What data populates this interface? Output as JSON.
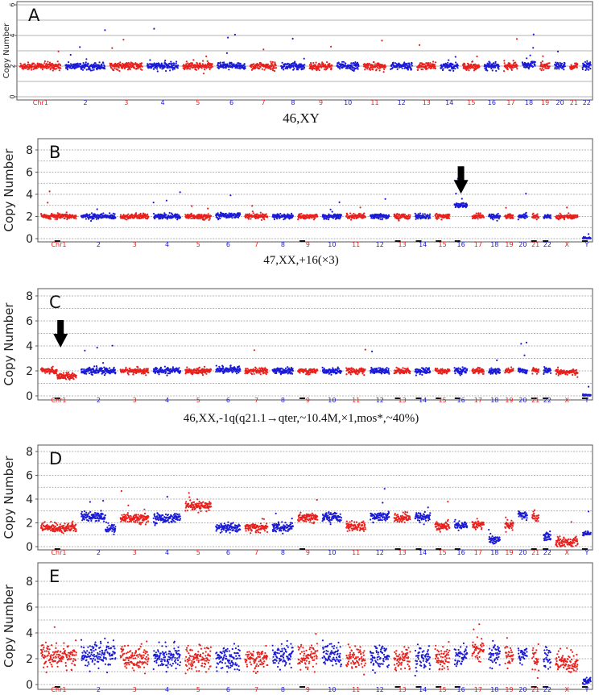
{
  "panels": [
    {
      "letter": "A",
      "caption": "46,XY",
      "ylabel": "Copy Number",
      "ylim": [
        0,
        6
      ],
      "yticks": [
        0,
        2,
        4,
        6
      ],
      "has_xy": false,
      "arrow": null,
      "segments": [
        {
          "chr": "1",
          "mean": 2.0,
          "color": "#e8201c"
        },
        {
          "chr": "2",
          "mean": 2.0,
          "color": "#1a1ad6"
        },
        {
          "chr": "3",
          "mean": 2.0,
          "color": "#e8201c"
        },
        {
          "chr": "4",
          "mean": 2.0,
          "color": "#1a1ad6"
        },
        {
          "chr": "5",
          "mean": 2.0,
          "color": "#e8201c"
        },
        {
          "chr": "6",
          "mean": 2.0,
          "color": "#1a1ad6"
        },
        {
          "chr": "7",
          "mean": 2.0,
          "color": "#e8201c"
        },
        {
          "chr": "8",
          "mean": 2.0,
          "color": "#1a1ad6"
        },
        {
          "chr": "9",
          "mean": 2.0,
          "color": "#e8201c"
        },
        {
          "chr": "10",
          "mean": 2.0,
          "color": "#1a1ad6"
        },
        {
          "chr": "11",
          "mean": 2.0,
          "color": "#e8201c"
        },
        {
          "chr": "12",
          "mean": 2.0,
          "color": "#1a1ad6"
        },
        {
          "chr": "13",
          "mean": 2.0,
          "color": "#e8201c"
        },
        {
          "chr": "14",
          "mean": 2.0,
          "color": "#1a1ad6"
        },
        {
          "chr": "15",
          "mean": 2.0,
          "color": "#e8201c"
        },
        {
          "chr": "16",
          "mean": 2.0,
          "color": "#1a1ad6"
        },
        {
          "chr": "17",
          "mean": 2.0,
          "color": "#e8201c"
        },
        {
          "chr": "18",
          "mean": 2.1,
          "color": "#1a1ad6"
        },
        {
          "chr": "19",
          "mean": 2.0,
          "color": "#e8201c"
        },
        {
          "chr": "20",
          "mean": 2.0,
          "color": "#1a1ad6"
        },
        {
          "chr": "21",
          "mean": 2.0,
          "color": "#e8201c"
        },
        {
          "chr": "22",
          "mean": 2.0,
          "color": "#1a1ad6"
        }
      ]
    },
    {
      "letter": "B",
      "caption": "47,XX,+16(×3)",
      "ylabel": "Copy Number",
      "ylim": [
        0,
        8
      ],
      "yticks": [
        0,
        2,
        4,
        6,
        8
      ],
      "has_xy": true,
      "arrow": {
        "chr": "16",
        "value": 4.2
      },
      "segments": [
        {
          "chr": "1",
          "mean": 2.0,
          "color": "#e8201c"
        },
        {
          "chr": "2",
          "mean": 2.0,
          "color": "#1a1ad6"
        },
        {
          "chr": "3",
          "mean": 2.0,
          "color": "#e8201c"
        },
        {
          "chr": "4",
          "mean": 2.0,
          "color": "#1a1ad6"
        },
        {
          "chr": "5",
          "mean": 2.0,
          "color": "#e8201c"
        },
        {
          "chr": "6",
          "mean": 2.1,
          "color": "#1a1ad6"
        },
        {
          "chr": "7",
          "mean": 2.0,
          "color": "#e8201c"
        },
        {
          "chr": "8",
          "mean": 2.0,
          "color": "#1a1ad6"
        },
        {
          "chr": "9",
          "mean": 2.0,
          "color": "#e8201c"
        },
        {
          "chr": "10",
          "mean": 2.0,
          "color": "#1a1ad6"
        },
        {
          "chr": "11",
          "mean": 2.0,
          "color": "#e8201c"
        },
        {
          "chr": "12",
          "mean": 2.0,
          "color": "#1a1ad6"
        },
        {
          "chr": "13",
          "mean": 2.0,
          "color": "#e8201c"
        },
        {
          "chr": "14",
          "mean": 2.0,
          "color": "#1a1ad6"
        },
        {
          "chr": "15",
          "mean": 2.0,
          "color": "#e8201c"
        },
        {
          "chr": "16",
          "mean": 3.0,
          "color": "#1a1ad6"
        },
        {
          "chr": "17",
          "mean": 2.0,
          "color": "#e8201c"
        },
        {
          "chr": "18",
          "mean": 2.0,
          "color": "#1a1ad6"
        },
        {
          "chr": "19",
          "mean": 2.0,
          "color": "#e8201c"
        },
        {
          "chr": "20",
          "mean": 2.0,
          "color": "#1a1ad6"
        },
        {
          "chr": "21",
          "mean": 2.0,
          "color": "#e8201c"
        },
        {
          "chr": "22",
          "mean": 2.0,
          "color": "#1a1ad6"
        },
        {
          "chr": "X",
          "mean": 2.0,
          "color": "#e8201c"
        },
        {
          "chr": "Y",
          "mean": 0.05,
          "color": "#1a1ad6"
        }
      ]
    },
    {
      "letter": "C",
      "caption": "46,XX,-1q(q21.1→qter,~10.4M,×1,mos*,~40%)",
      "ylabel": "Copy Number",
      "ylim": [
        0,
        8
      ],
      "yticks": [
        0,
        2,
        4,
        6,
        8
      ],
      "has_xy": true,
      "arrow": {
        "chr": "1",
        "value": 4.0,
        "offset": 0.55
      },
      "segments": [
        {
          "chr": "1",
          "mean": 2.0,
          "color": "#e8201c",
          "partial": {
            "from": 0.45,
            "to": 1.0,
            "mean": 1.6
          }
        },
        {
          "chr": "2",
          "mean": 2.0,
          "color": "#1a1ad6"
        },
        {
          "chr": "3",
          "mean": 2.0,
          "color": "#e8201c"
        },
        {
          "chr": "4",
          "mean": 2.0,
          "color": "#1a1ad6"
        },
        {
          "chr": "5",
          "mean": 2.0,
          "color": "#e8201c"
        },
        {
          "chr": "6",
          "mean": 2.1,
          "color": "#1a1ad6"
        },
        {
          "chr": "7",
          "mean": 2.0,
          "color": "#e8201c"
        },
        {
          "chr": "8",
          "mean": 2.0,
          "color": "#1a1ad6"
        },
        {
          "chr": "9",
          "mean": 2.0,
          "color": "#e8201c"
        },
        {
          "chr": "10",
          "mean": 2.0,
          "color": "#1a1ad6"
        },
        {
          "chr": "11",
          "mean": 2.0,
          "color": "#e8201c"
        },
        {
          "chr": "12",
          "mean": 2.0,
          "color": "#1a1ad6"
        },
        {
          "chr": "13",
          "mean": 2.0,
          "color": "#e8201c"
        },
        {
          "chr": "14",
          "mean": 2.0,
          "color": "#1a1ad6"
        },
        {
          "chr": "15",
          "mean": 2.0,
          "color": "#e8201c"
        },
        {
          "chr": "16",
          "mean": 2.0,
          "color": "#1a1ad6"
        },
        {
          "chr": "17",
          "mean": 2.0,
          "color": "#e8201c"
        },
        {
          "chr": "18",
          "mean": 2.0,
          "color": "#1a1ad6"
        },
        {
          "chr": "19",
          "mean": 2.0,
          "color": "#e8201c"
        },
        {
          "chr": "20",
          "mean": 2.0,
          "color": "#1a1ad6"
        },
        {
          "chr": "21",
          "mean": 2.0,
          "color": "#e8201c"
        },
        {
          "chr": "22",
          "mean": 2.0,
          "color": "#1a1ad6"
        },
        {
          "chr": "X",
          "mean": 1.9,
          "color": "#e8201c"
        },
        {
          "chr": "Y",
          "mean": 0.05,
          "color": "#1a1ad6"
        }
      ]
    },
    {
      "letter": "D",
      "caption": "",
      "ylabel": "Copy Number",
      "ylim": [
        0,
        8
      ],
      "yticks": [
        0,
        2,
        4,
        6,
        8
      ],
      "has_xy": true,
      "arrow": null,
      "segments": [
        {
          "chr": "1",
          "mean": 1.6,
          "color": "#e8201c"
        },
        {
          "chr": "2",
          "mean": 2.5,
          "color": "#1a1ad6",
          "partial": {
            "from": 0.7,
            "to": 1.0,
            "mean": 1.5
          }
        },
        {
          "chr": "3",
          "mean": 2.4,
          "color": "#e8201c"
        },
        {
          "chr": "4",
          "mean": 2.4,
          "color": "#1a1ad6"
        },
        {
          "chr": "5",
          "mean": 3.4,
          "color": "#e8201c"
        },
        {
          "chr": "6",
          "mean": 1.6,
          "color": "#1a1ad6"
        },
        {
          "chr": "7",
          "mean": 1.6,
          "color": "#e8201c"
        },
        {
          "chr": "8",
          "mean": 1.6,
          "color": "#1a1ad6"
        },
        {
          "chr": "9",
          "mean": 2.4,
          "color": "#e8201c"
        },
        {
          "chr": "10",
          "mean": 2.5,
          "color": "#1a1ad6"
        },
        {
          "chr": "11",
          "mean": 1.7,
          "color": "#e8201c"
        },
        {
          "chr": "12",
          "mean": 2.5,
          "color": "#1a1ad6"
        },
        {
          "chr": "13",
          "mean": 2.4,
          "color": "#e8201c"
        },
        {
          "chr": "14",
          "mean": 2.5,
          "color": "#1a1ad6"
        },
        {
          "chr": "15",
          "mean": 1.7,
          "color": "#e8201c"
        },
        {
          "chr": "16",
          "mean": 1.8,
          "color": "#1a1ad6"
        },
        {
          "chr": "17",
          "mean": 1.9,
          "color": "#e8201c"
        },
        {
          "chr": "18",
          "mean": 0.6,
          "color": "#1a1ad6"
        },
        {
          "chr": "19",
          "mean": 1.8,
          "color": "#e8201c"
        },
        {
          "chr": "20",
          "mean": 2.6,
          "color": "#1a1ad6"
        },
        {
          "chr": "21",
          "mean": 2.5,
          "color": "#e8201c"
        },
        {
          "chr": "22",
          "mean": 0.9,
          "color": "#1a1ad6"
        },
        {
          "chr": "X",
          "mean": 0.4,
          "color": "#e8201c"
        },
        {
          "chr": "Y",
          "mean": 1.1,
          "color": "#1a1ad6"
        }
      ]
    },
    {
      "letter": "E",
      "caption": "",
      "ylabel": "Copy Number",
      "ylim": [
        0,
        8
      ],
      "yticks": [
        0,
        2,
        4,
        6,
        8
      ],
      "has_xy": true,
      "arrow": null,
      "noisy": true,
      "segments": [
        {
          "chr": "1",
          "mean": 2.2,
          "color": "#e8201c"
        },
        {
          "chr": "2",
          "mean": 2.3,
          "color": "#1a1ad6"
        },
        {
          "chr": "3",
          "mean": 2.1,
          "color": "#e8201c"
        },
        {
          "chr": "4",
          "mean": 2.1,
          "color": "#1a1ad6"
        },
        {
          "chr": "5",
          "mean": 2.0,
          "color": "#e8201c"
        },
        {
          "chr": "6",
          "mean": 2.0,
          "color": "#1a1ad6"
        },
        {
          "chr": "7",
          "mean": 2.0,
          "color": "#e8201c"
        },
        {
          "chr": "8",
          "mean": 2.3,
          "color": "#1a1ad6"
        },
        {
          "chr": "9",
          "mean": 2.2,
          "color": "#e8201c"
        },
        {
          "chr": "10",
          "mean": 2.3,
          "color": "#1a1ad6"
        },
        {
          "chr": "11",
          "mean": 2.1,
          "color": "#e8201c"
        },
        {
          "chr": "12",
          "mean": 2.1,
          "color": "#1a1ad6"
        },
        {
          "chr": "13",
          "mean": 2.0,
          "color": "#e8201c"
        },
        {
          "chr": "14",
          "mean": 2.0,
          "color": "#1a1ad6"
        },
        {
          "chr": "15",
          "mean": 2.1,
          "color": "#e8201c"
        },
        {
          "chr": "16",
          "mean": 2.1,
          "color": "#1a1ad6"
        },
        {
          "chr": "17",
          "mean": 2.6,
          "color": "#e8201c"
        },
        {
          "chr": "18",
          "mean": 2.2,
          "color": "#1a1ad6"
        },
        {
          "chr": "19",
          "mean": 2.2,
          "color": "#e8201c"
        },
        {
          "chr": "20",
          "mean": 2.3,
          "color": "#1a1ad6"
        },
        {
          "chr": "21",
          "mean": 2.0,
          "color": "#e8201c"
        },
        {
          "chr": "22",
          "mean": 2.1,
          "color": "#1a1ad6"
        },
        {
          "chr": "X",
          "mean": 1.7,
          "color": "#e8201c"
        },
        {
          "chr": "Y",
          "mean": 0.3,
          "color": "#1a1ad6"
        }
      ]
    }
  ],
  "chromosomes": [
    {
      "chr": "1",
      "label": "Chr1",
      "color": "#e8201c"
    },
    {
      "chr": "2",
      "label": "2",
      "color": "#1a1ad6"
    },
    {
      "chr": "3",
      "label": "3",
      "color": "#e8201c"
    },
    {
      "chr": "4",
      "label": "4",
      "color": "#1a1ad6"
    },
    {
      "chr": "5",
      "label": "5",
      "color": "#e8201c"
    },
    {
      "chr": "6",
      "label": "6",
      "color": "#1a1ad6"
    },
    {
      "chr": "7",
      "label": "7",
      "color": "#e8201c"
    },
    {
      "chr": "8",
      "label": "8",
      "color": "#1a1ad6"
    },
    {
      "chr": "9",
      "label": "9",
      "color": "#e8201c"
    },
    {
      "chr": "10",
      "label": "10",
      "color": "#1a1ad6"
    },
    {
      "chr": "11",
      "label": "11",
      "color": "#e8201c"
    },
    {
      "chr": "12",
      "label": "12",
      "color": "#1a1ad6"
    },
    {
      "chr": "13",
      "label": "13",
      "color": "#e8201c"
    },
    {
      "chr": "14",
      "label": "14",
      "color": "#1a1ad6"
    },
    {
      "chr": "15",
      "label": "15",
      "color": "#e8201c"
    },
    {
      "chr": "16",
      "label": "16",
      "color": "#1a1ad6"
    },
    {
      "chr": "17",
      "label": "17",
      "color": "#e8201c"
    },
    {
      "chr": "18",
      "label": "18",
      "color": "#1a1ad6"
    },
    {
      "chr": "19",
      "label": "19",
      "color": "#e8201c"
    },
    {
      "chr": "20",
      "label": "20",
      "color": "#1a1ad6"
    },
    {
      "chr": "21",
      "label": "21",
      "color": "#e8201c"
    },
    {
      "chr": "22",
      "label": "22",
      "color": "#1a1ad6"
    },
    {
      "chr": "X",
      "label": "X",
      "color": "#e8201c"
    },
    {
      "chr": "Y",
      "label": "Y",
      "color": "#1a1ad6"
    }
  ],
  "chart_data": {
    "type": "scatter",
    "ylabel": "Copy Number",
    "series_colors": {
      "odd_chromosomes": "#e8201c",
      "even_chromosomes": "#1a1ad6"
    }
  }
}
